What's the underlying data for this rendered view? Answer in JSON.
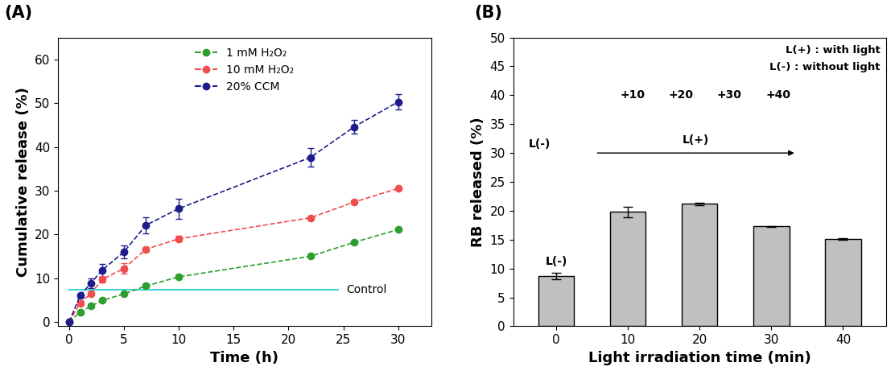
{
  "chart_data": [
    {
      "type": "line",
      "title": "(A)",
      "x_label": "Time (h)",
      "y_label": "Cumulative release (%)",
      "x": [
        0,
        1,
        2,
        3,
        5,
        7,
        10,
        22,
        26,
        30
      ],
      "series": [
        {
          "name": "1 mM H₂O₂",
          "color": "#2e9e2e",
          "marker": "circle",
          "line_style": "dashed",
          "values": [
            0,
            2.2,
            3.6,
            4.9,
            6.4,
            8.2,
            10.3,
            15.0,
            18.2,
            21.1
          ],
          "errors": [
            0,
            0.3,
            0.3,
            0.3,
            0.3,
            0.3,
            0.3,
            0.3,
            0.3,
            0.3
          ]
        },
        {
          "name": "10 mM H₂O₂",
          "color": "#f04e4e",
          "marker": "circle",
          "line_style": "dashed",
          "values": [
            0,
            4.3,
            6.5,
            9.7,
            12.2,
            16.6,
            19.0,
            23.8,
            27.4,
            30.5
          ],
          "errors": [
            0,
            0.4,
            0.5,
            0.6,
            1.2,
            0.5,
            0.6,
            0.3,
            0.3,
            0.3
          ]
        },
        {
          "name": "20% CCM",
          "color": "#1c1c8c",
          "marker": "circle",
          "line_style": "dashed",
          "values": [
            0,
            6.0,
            8.9,
            11.8,
            16.0,
            22.1,
            25.9,
            37.6,
            44.6,
            50.3
          ],
          "errors": [
            0,
            0.5,
            1.1,
            1.5,
            1.4,
            1.9,
            2.3,
            2.1,
            1.6,
            1.8
          ]
        }
      ],
      "reference_line": {
        "label": "Control",
        "value": 7.3,
        "from": 0,
        "to": 24.5,
        "color": "#3fd3e0"
      },
      "xlim": [
        -1,
        33
      ],
      "xticks": [
        0,
        5,
        10,
        15,
        20,
        25,
        30
      ],
      "ylim": [
        -1,
        65
      ],
      "yticks": [
        0,
        10,
        20,
        30,
        40,
        50,
        60
      ],
      "legend": "upper center"
    },
    {
      "type": "bar",
      "title": "(B)",
      "x_label": "Light irradiation time (min)",
      "y_label": "RB released (%)",
      "categories": [
        "0",
        "10",
        "20",
        "30",
        "40"
      ],
      "values": [
        8.7,
        19.8,
        21.2,
        17.3,
        15.1
      ],
      "errors": [
        0.5,
        0.9,
        0.2,
        0.1,
        0.1
      ],
      "color": "#c0c0c0",
      "ylim": [
        0,
        50
      ],
      "yticks": [
        0,
        5,
        10,
        15,
        20,
        25,
        30,
        35,
        40,
        45,
        50
      ],
      "notes": [
        "L(+) : with light",
        "L(-) : without light"
      ],
      "annotations": [
        {
          "category": "0",
          "text": "L(-)"
        }
      ],
      "inset_labels": [
        "+10",
        "+20",
        "+30",
        "+40"
      ],
      "inset_arrow": [
        "L(-)",
        "L(+)"
      ]
    }
  ]
}
